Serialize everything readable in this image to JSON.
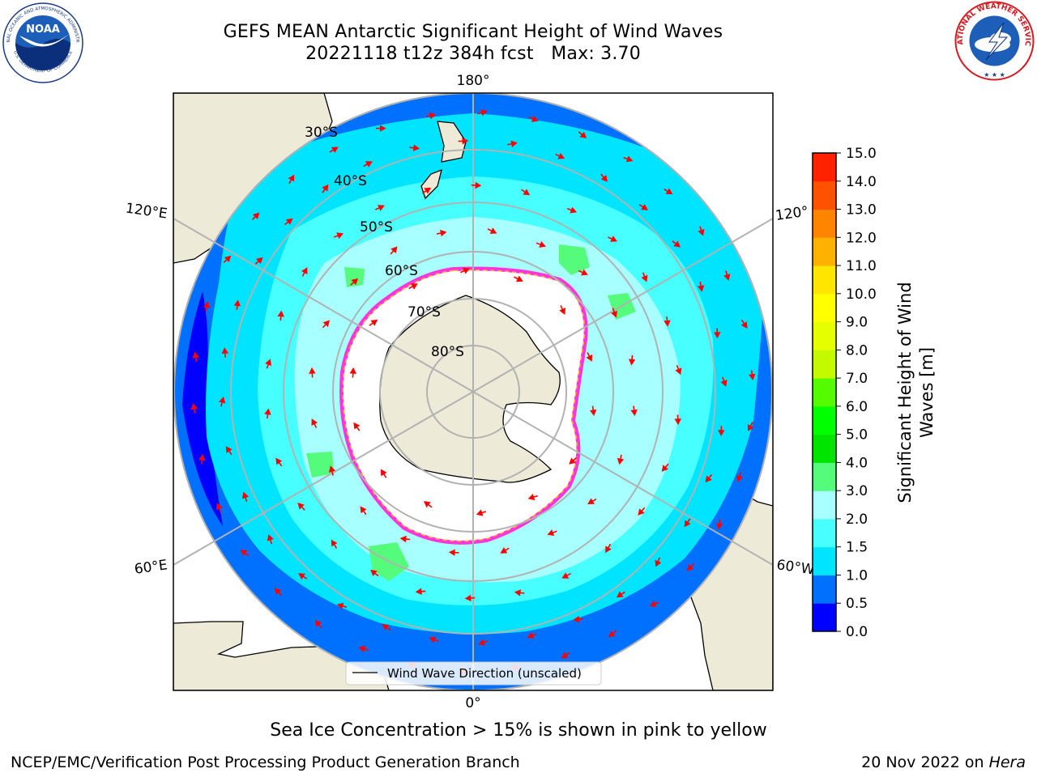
{
  "header": {
    "title": "GEFS MEAN Antarctic Significant Height of Wind Waves",
    "date_line": "20221118 t12z 384h fcst",
    "max_line": "Max: 3.70"
  },
  "logos": {
    "noaa_abbrev": "NOAA",
    "noaa_ring_top": "NATIONAL OCEANIC AND ATMOSPHERIC ADMINISTRATION",
    "noaa_ring_bottom": "U.S. DEPARTMENT OF COMMERCE",
    "nws_ring": "NATIONAL WEATHER SERVICE"
  },
  "map": {
    "projection": "south polar stereographic",
    "latitude_labels": [
      "30°S",
      "40°S",
      "50°S",
      "60°S",
      "70°S",
      "80°S"
    ],
    "longitude_labels": {
      "top": "180°",
      "bottom": "0°",
      "upper_left": "120°E",
      "lower_left": "60°E",
      "upper_right": "120°",
      "lower_right": "60°W"
    },
    "legend_label": "Wind Wave Direction (unscaled)",
    "colors": {
      "land": "#eeead8",
      "sea_ice": "#ffffff",
      "ice_edge_pink": "#ff33dd",
      "ice_edge_yellow": "#ffb040",
      "arrow": "#ff0000",
      "graticule": "#b2b2b2"
    }
  },
  "colorbar": {
    "label_line1": "Significant Height of Wind",
    "label_line2": "Waves [m]",
    "ticks": [
      "0.0",
      "0.5",
      "1.0",
      "1.5",
      "2.0",
      "3.0",
      "4.0",
      "5.0",
      "6.0",
      "7.0",
      "8.0",
      "9.0",
      "10.0",
      "11.0",
      "12.0",
      "13.0",
      "14.0",
      "15.0"
    ],
    "colors": [
      "#0000ff",
      "#0071ff",
      "#00e4ff",
      "#47ffff",
      "#a7ffff",
      "#55fb7b",
      "#00e500",
      "#00ff00",
      "#55fb00",
      "#c4fa00",
      "#e5ff00",
      "#ffff00",
      "#ffe500",
      "#ffb100",
      "#ff8400",
      "#ff5200",
      "#ff2200"
    ]
  },
  "note": "Sea Ice Concentration > 15% is shown in pink to yellow",
  "footer": {
    "left": "NCEP/EMC/Verification Post Processing Product Generation Branch",
    "right_prefix": "20 Nov 2022 on ",
    "right_host": "Hera"
  }
}
